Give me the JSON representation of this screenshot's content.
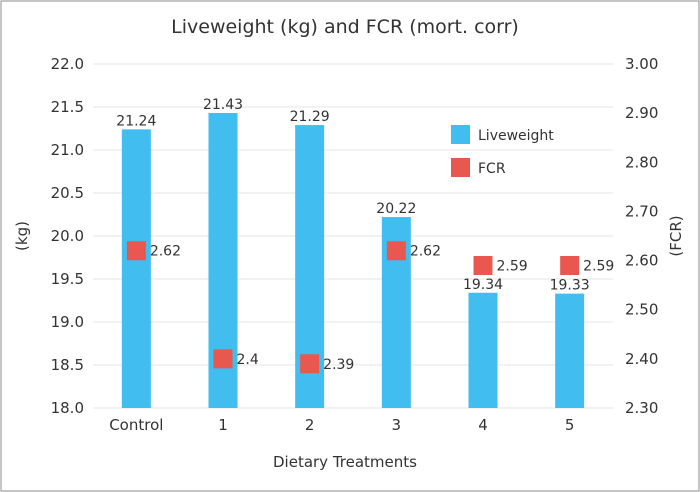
{
  "chart_data": {
    "type": "bar",
    "title": "Liveweight  (kg) and FCR (mort. corr)",
    "xlabel": "Dietary Treatments",
    "ylabel": "(kg)",
    "y2label": "(FCR)",
    "categories": [
      "Control",
      "1",
      "2",
      "3",
      "4",
      "5"
    ],
    "ylim": [
      18.0,
      22.0
    ],
    "y2lim": [
      2.3,
      3.0
    ],
    "yticks": [
      "18.0",
      "18.5",
      "19.0",
      "19.5",
      "20.0",
      "20.5",
      "21.0",
      "21.5",
      "22.0"
    ],
    "y2ticks": [
      "2.30",
      "2.40",
      "2.50",
      "2.60",
      "2.70",
      "2.80",
      "2.90",
      "3.00"
    ],
    "grid": true,
    "legend": "top-right",
    "series": [
      {
        "name": "Liveweight",
        "axis": "left",
        "mark": "bar",
        "color": "#41BDEF",
        "values": [
          21.24,
          21.43,
          21.29,
          20.22,
          19.34,
          19.33
        ],
        "labels": [
          "21.24",
          "21.43",
          "21.29",
          "20.22",
          "19.34",
          "19.33"
        ]
      },
      {
        "name": "FCR",
        "axis": "right",
        "mark": "square",
        "color": "#E8584F",
        "values": [
          2.62,
          2.4,
          2.39,
          2.62,
          2.59,
          2.59
        ],
        "labels": [
          "2.62",
          "2.4",
          "2.39",
          "2.62",
          "2.59",
          "2.59"
        ]
      }
    ]
  }
}
